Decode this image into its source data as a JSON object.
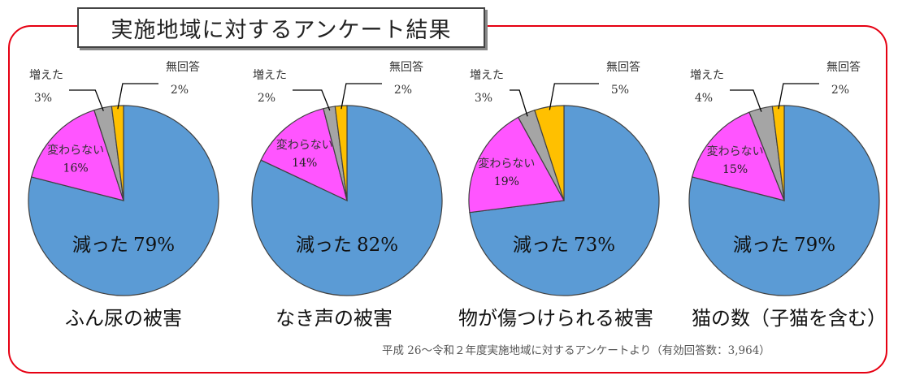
{
  "title": "実施地域に対するアンケート結果",
  "footnote": "平成 26～令和２年度実施地域に対するアンケートより（有効回答数：3,964）",
  "colors": {
    "frame": "#e60012",
    "slice_decreased": "#5b9bd5",
    "slice_unchanged": "#ff55ff",
    "slice_increased": "#a5a5a5",
    "slice_no_answer": "#ffc000"
  },
  "chart_data": [
    {
      "type": "pie",
      "title": "ふん尿の被害",
      "labels": [
        "減った",
        "変わらない",
        "増えた",
        "無回答"
      ],
      "values": [
        79,
        16,
        3,
        2
      ],
      "value_labels": [
        "79%",
        "16%",
        "3%",
        "2%"
      ]
    },
    {
      "type": "pie",
      "title": "なき声の被害",
      "labels": [
        "減った",
        "変わらない",
        "増えた",
        "無回答"
      ],
      "values": [
        82,
        14,
        2,
        2
      ],
      "value_labels": [
        "82%",
        "14%",
        "2%",
        "2%"
      ]
    },
    {
      "type": "pie",
      "title": "物が傷つけられる被害",
      "labels": [
        "減った",
        "変わらない",
        "増えた",
        "無回答"
      ],
      "values": [
        73,
        19,
        3,
        5
      ],
      "value_labels": [
        "73%",
        "19%",
        "3%",
        "5%"
      ]
    },
    {
      "type": "pie",
      "title": "猫の数（子猫を含む）",
      "labels": [
        "減った",
        "変わらない",
        "増えた",
        "無回答"
      ],
      "values": [
        79,
        15,
        4,
        2
      ],
      "value_labels": [
        "79%",
        "15%",
        "4%",
        "2%"
      ]
    }
  ]
}
